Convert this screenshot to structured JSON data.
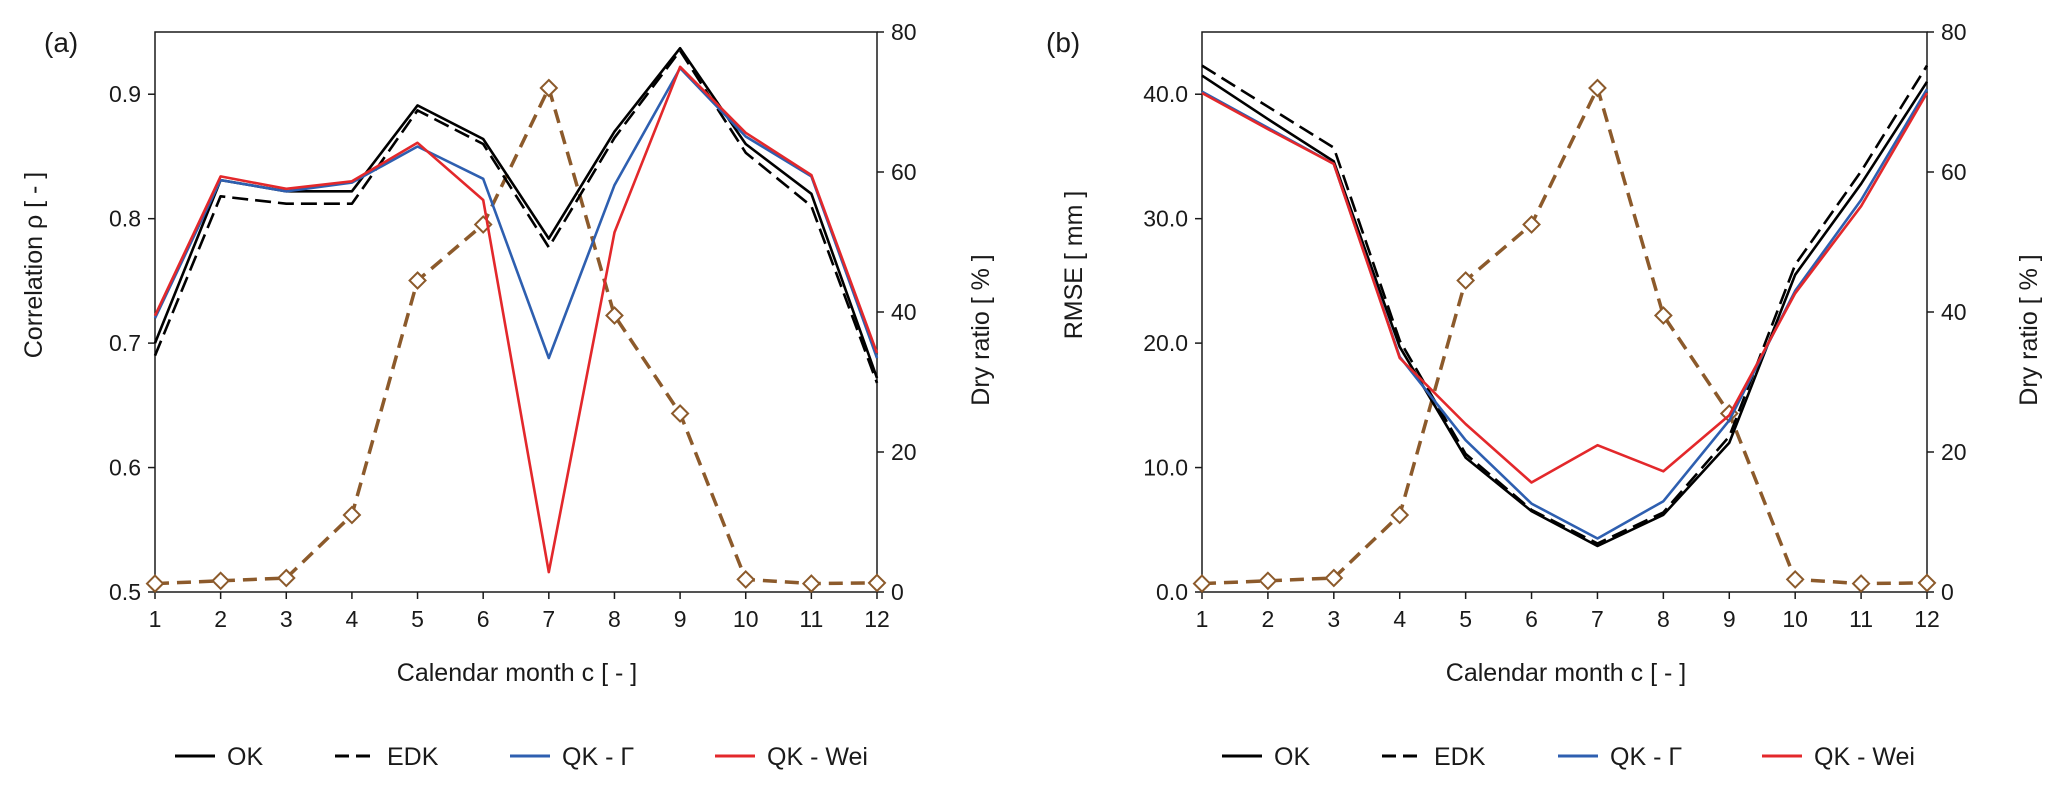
{
  "chart_data": [
    {
      "type": "line",
      "panel_label": "(a)",
      "xlabel": "Calendar month c   [ - ]",
      "ylabel": "Correlation  ρ  [ - ]",
      "y2label": "Dry ratio [ % ]",
      "x": [
        1,
        2,
        3,
        4,
        5,
        6,
        7,
        8,
        9,
        10,
        11,
        12
      ],
      "xticks": [
        "1",
        "2",
        "3",
        "4",
        "5",
        "6",
        "7",
        "8",
        "9",
        "10",
        "11",
        "12"
      ],
      "ylim": [
        0.5,
        0.95
      ],
      "yticks": [
        0.5,
        0.6,
        0.7,
        0.8,
        0.9
      ],
      "ytick_labels": [
        "0.5",
        "0.6",
        "0.7",
        "0.8",
        "0.9"
      ],
      "y2lim": [
        0,
        80
      ],
      "y2ticks": [
        0,
        20,
        40,
        60,
        80
      ],
      "y2tick_labels": [
        "0",
        "20",
        "40",
        "60",
        "80"
      ],
      "series": [
        {
          "name": "OK",
          "axis": "left",
          "color": "#000000",
          "dash": "solid",
          "values": [
            0.7,
            0.831,
            0.822,
            0.822,
            0.891,
            0.864,
            0.784,
            0.87,
            0.937,
            0.86,
            0.82,
            0.672
          ]
        },
        {
          "name": "EDK",
          "axis": "left",
          "color": "#000000",
          "dash": "dashed",
          "values": [
            0.69,
            0.818,
            0.812,
            0.812,
            0.887,
            0.86,
            0.777,
            0.865,
            0.935,
            0.853,
            0.81,
            0.668
          ]
        },
        {
          "name": "QK - Γ",
          "axis": "left",
          "color": "#2e5fb0",
          "dash": "solid",
          "values": [
            0.72,
            0.831,
            0.822,
            0.829,
            0.858,
            0.832,
            0.688,
            0.827,
            0.921,
            0.866,
            0.834,
            0.688
          ]
        },
        {
          "name": "QK - Wei",
          "axis": "left",
          "color": "#e3282b",
          "dash": "solid",
          "values": [
            0.722,
            0.834,
            0.824,
            0.83,
            0.861,
            0.815,
            0.516,
            0.789,
            0.922,
            0.869,
            0.835,
            0.692
          ]
        },
        {
          "name": "Dry ratio",
          "axis": "right",
          "color": "#8c5a2b",
          "dash": "dashed",
          "marker": "diamond",
          "values": [
            1.2,
            1.6,
            2.0,
            11.0,
            44.5,
            52.5,
            72.0,
            39.5,
            25.5,
            1.8,
            1.2,
            1.3
          ]
        }
      ],
      "legend": [
        "OK",
        "EDK",
        "QK - Γ",
        "QK - Wei"
      ],
      "legend_position": "bottom"
    },
    {
      "type": "line",
      "panel_label": "(b)",
      "xlabel": "Calendar month c   [ - ]",
      "ylabel": "RMSE  [ mm ]",
      "y2label": "Dry ratio [ % ]",
      "x": [
        1,
        2,
        3,
        4,
        5,
        6,
        7,
        8,
        9,
        10,
        11,
        12
      ],
      "xticks": [
        "1",
        "2",
        "3",
        "4",
        "5",
        "6",
        "7",
        "8",
        "9",
        "10",
        "11",
        "12"
      ],
      "ylim": [
        0,
        45
      ],
      "yticks": [
        0,
        10,
        20,
        30,
        40
      ],
      "ytick_labels": [
        "0.0",
        "10.0",
        "20.0",
        "30.0",
        "40.0"
      ],
      "y2lim": [
        0,
        80
      ],
      "y2ticks": [
        0,
        20,
        40,
        60,
        80
      ],
      "y2tick_labels": [
        "0",
        "20",
        "40",
        "60",
        "80"
      ],
      "series": [
        {
          "name": "OK",
          "axis": "left",
          "color": "#000000",
          "dash": "solid",
          "values": [
            41.5,
            38.0,
            34.6,
            19.7,
            10.8,
            6.5,
            3.7,
            6.2,
            12.0,
            25.5,
            32.8,
            41.0
          ]
        },
        {
          "name": "EDK",
          "axis": "left",
          "color": "#000000",
          "dash": "dashed",
          "values": [
            42.3,
            39.0,
            35.7,
            20.2,
            11.1,
            6.6,
            3.9,
            6.4,
            12.5,
            26.3,
            33.8,
            42.3
          ]
        },
        {
          "name": "QK - Γ",
          "axis": "left",
          "color": "#2e5fb0",
          "dash": "solid",
          "values": [
            40.2,
            37.3,
            34.4,
            18.9,
            12.2,
            7.1,
            4.3,
            7.3,
            13.8,
            24.2,
            31.5,
            40.4
          ]
        },
        {
          "name": "QK - Wei",
          "axis": "left",
          "color": "#e3282b",
          "dash": "solid",
          "values": [
            40.1,
            37.2,
            34.4,
            18.8,
            13.5,
            8.8,
            11.8,
            9.7,
            14.2,
            24.0,
            31.0,
            40.1
          ]
        },
        {
          "name": "Dry ratio",
          "axis": "right",
          "color": "#8c5a2b",
          "dash": "dashed",
          "marker": "diamond",
          "values": [
            1.2,
            1.6,
            2.0,
            11.0,
            44.5,
            52.5,
            72.0,
            39.5,
            25.5,
            1.8,
            1.2,
            1.3
          ]
        }
      ],
      "legend": [
        "OK",
        "EDK",
        "QK - Γ",
        "QK - Wei"
      ],
      "legend_position": "bottom"
    }
  ]
}
